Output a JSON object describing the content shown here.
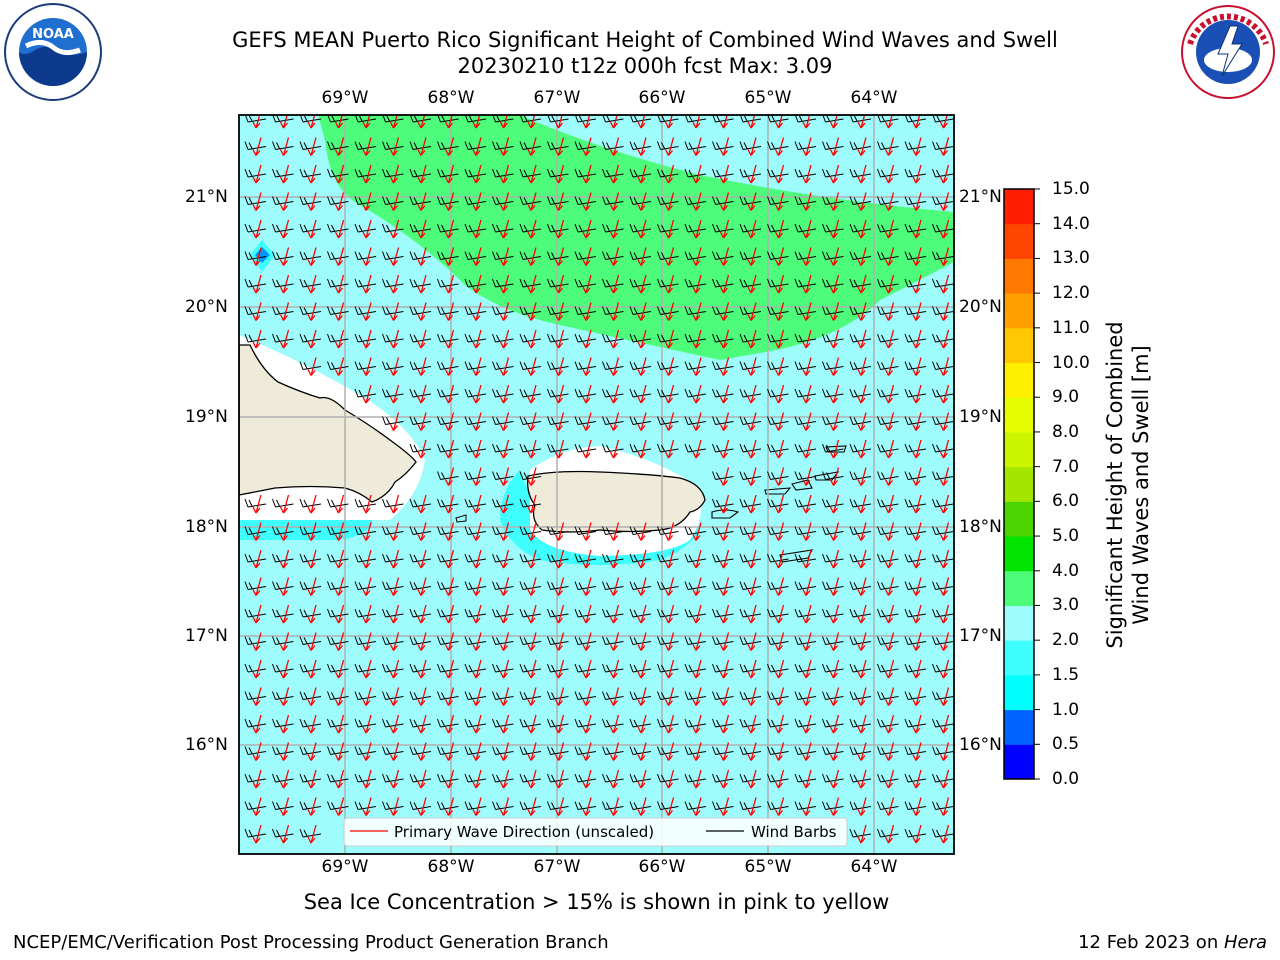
{
  "header": {
    "title_line1": "GEFS MEAN Puerto Rico Significant Height of Combined Wind Waves and Swell",
    "title_line2": "20230210 t12z 000h fcst   Max: 3.09"
  },
  "logos": {
    "left": {
      "name": "noaa-logo",
      "text": "NOAA",
      "ring_text": "NATIONAL OCEANIC AND ATMOSPHERIC ADMINISTRATION · U.S. DEPARTMENT OF COMMERCE"
    },
    "right": {
      "name": "nws-logo",
      "ring_text": "NATIONAL WEATHER SERVICE"
    }
  },
  "map": {
    "lon_labels": [
      "69°W",
      "68°W",
      "67°W",
      "66°W",
      "65°W",
      "64°W"
    ],
    "lat_labels": [
      "21°N",
      "20°N",
      "19°N",
      "18°N",
      "17°N",
      "16°N"
    ],
    "legend": {
      "wave_direction": "Primary Wave Direction (unscaled)",
      "wind_barbs": "Wind Barbs"
    },
    "colors": {
      "ocean_2_3m": "#9ffcfc",
      "band_3_4m": "#4efc7c",
      "band_1_5_2m": "#3efefe",
      "land": "#eeebda",
      "wave_arrow": "#ff0000",
      "wind_barb": "#000000"
    }
  },
  "colorbar": {
    "label_line1": "Significant Height of Combined",
    "label_line2": "Wind Waves and Swell [m]",
    "ticks": [
      "0.0",
      "0.5",
      "1.0",
      "1.5",
      "2.0",
      "3.0",
      "4.0",
      "5.0",
      "6.0",
      "7.0",
      "8.0",
      "9.0",
      "10.0",
      "11.0",
      "12.0",
      "13.0",
      "14.0",
      "15.0"
    ],
    "colors": [
      "#0000ff",
      "#0064ff",
      "#00ffff",
      "#3efefe",
      "#9ffcfc",
      "#4efc7c",
      "#00e400",
      "#4cd400",
      "#a4e600",
      "#ccf500",
      "#e6ff00",
      "#fff000",
      "#ffc800",
      "#ffa000",
      "#ff7800",
      "#ff4600",
      "#ff1e00"
    ]
  },
  "caption": "Sea Ice Concentration > 15% is shown in pink to yellow",
  "footer": {
    "left": "NCEP/EMC/Verification Post Processing Product Generation Branch",
    "right_date": "12 Feb 2023 on ",
    "right_host": "Hera"
  }
}
